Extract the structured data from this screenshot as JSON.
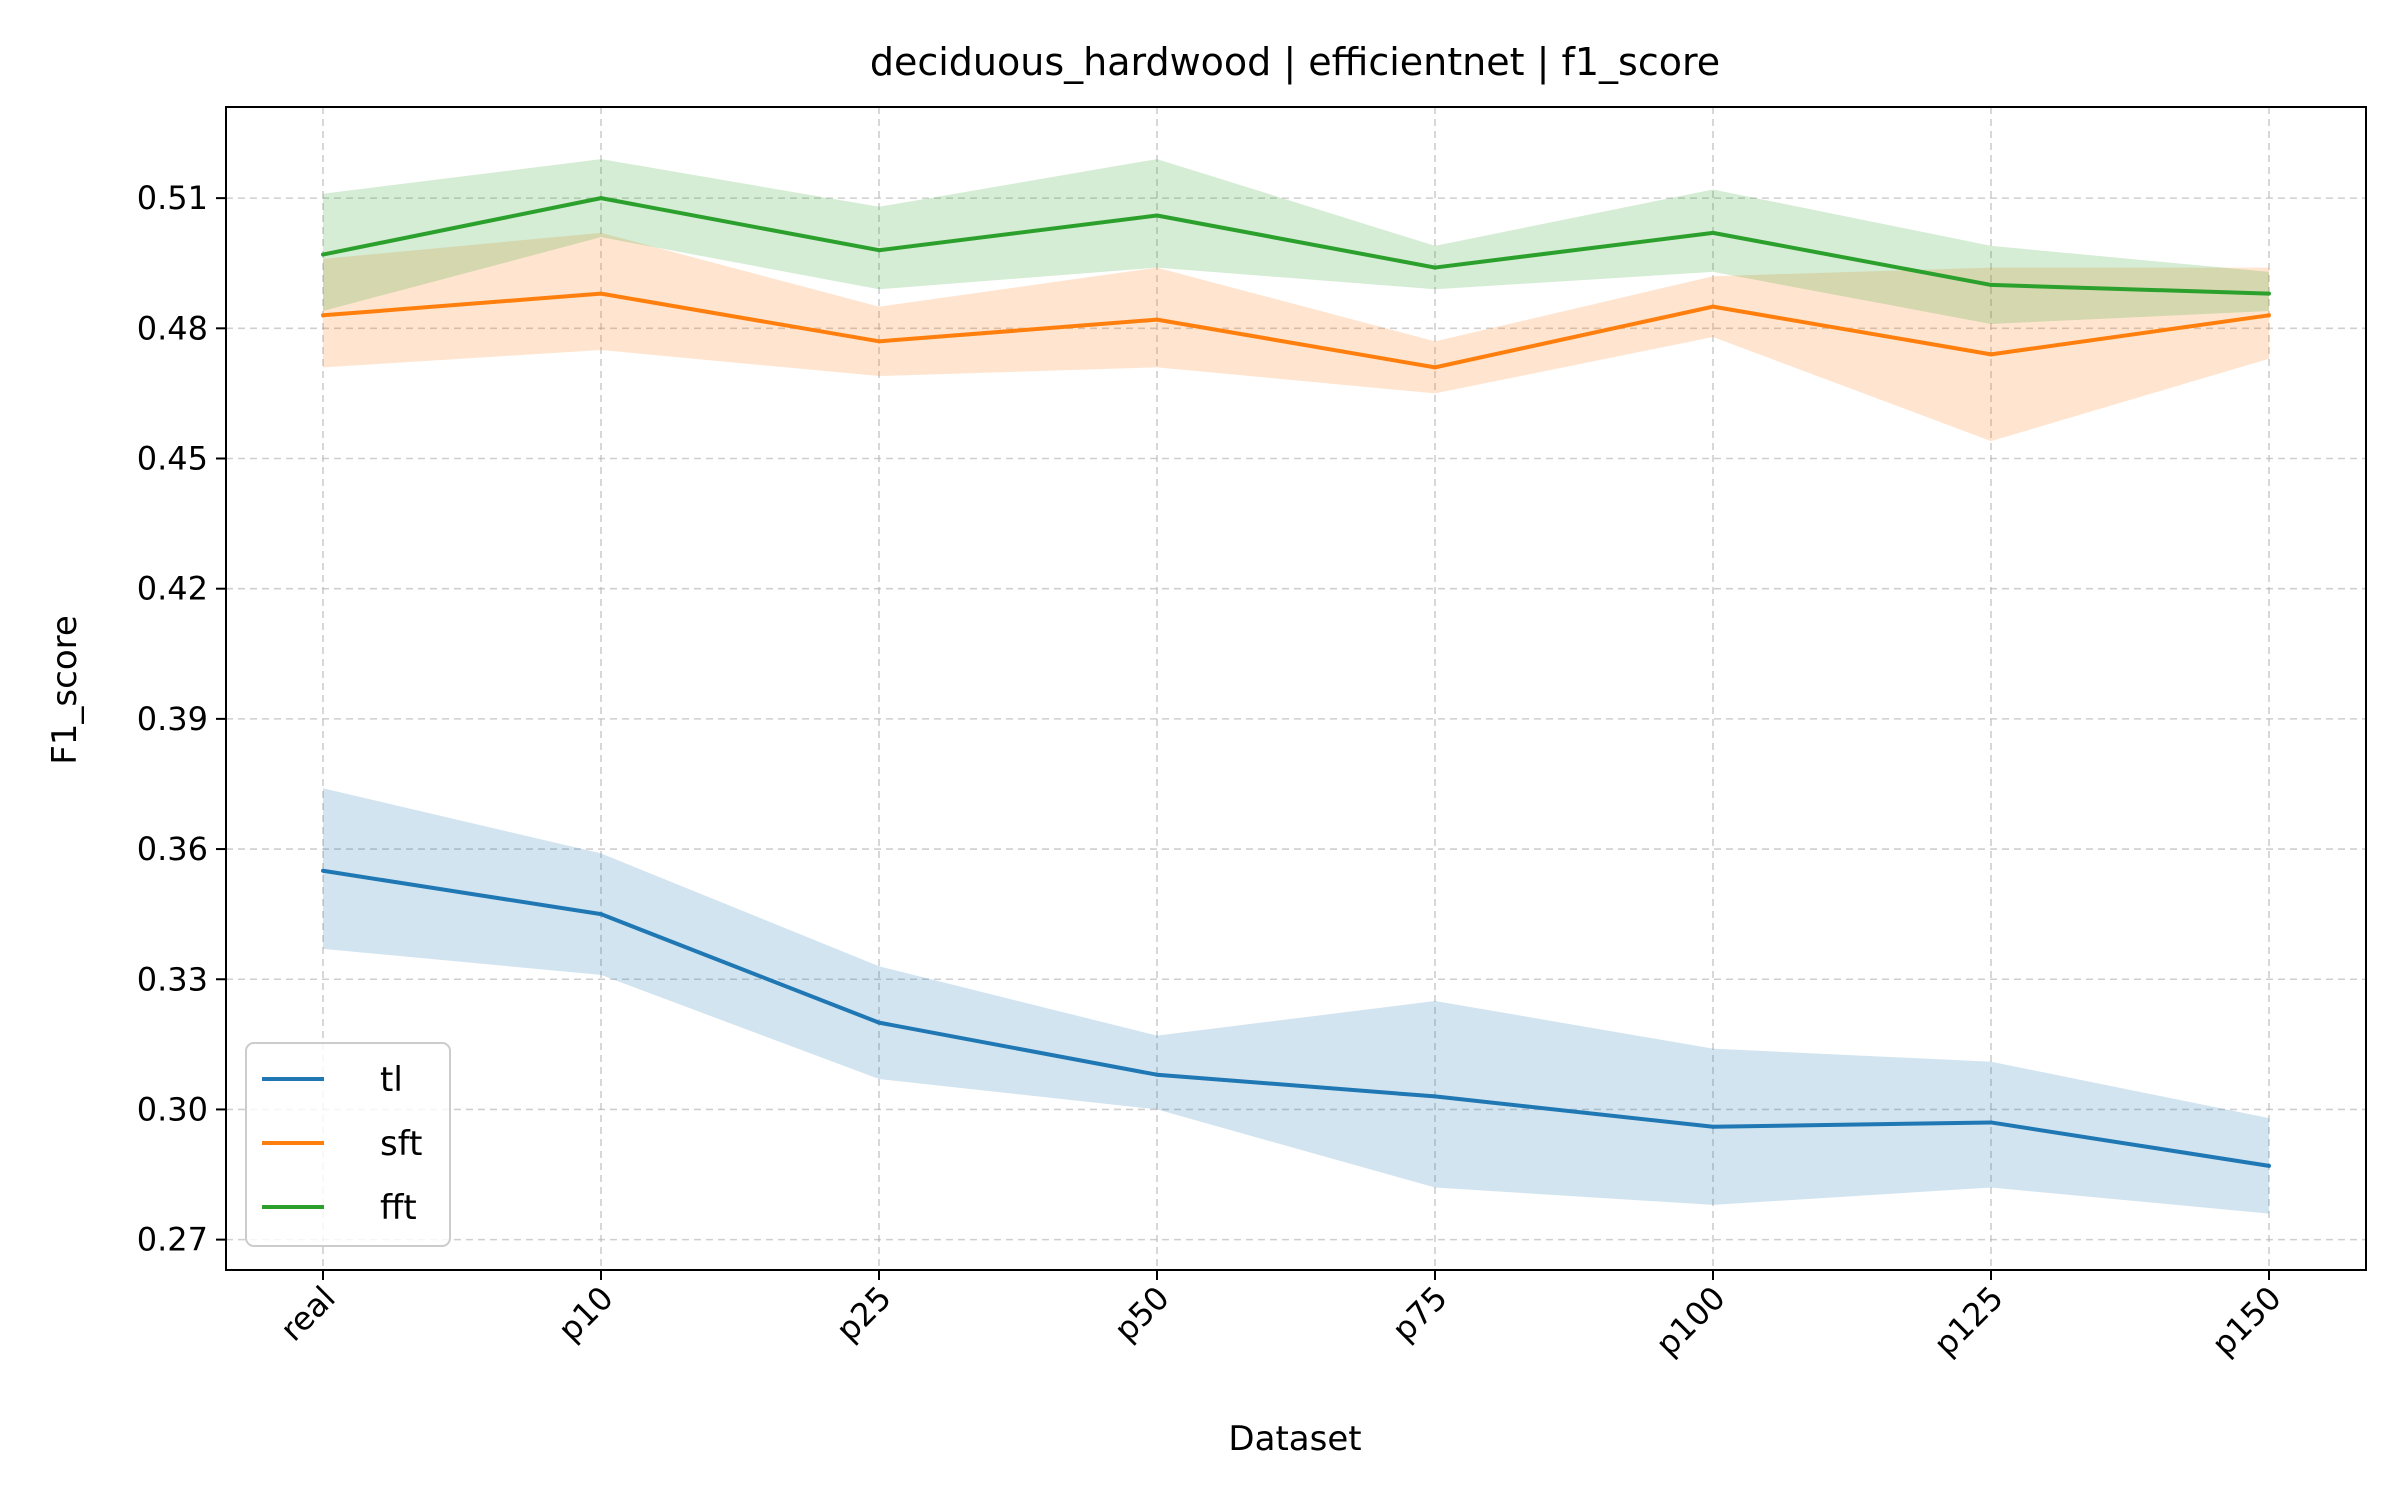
{
  "chart_data": {
    "type": "line",
    "title": "deciduous_hardwood | efficientnet | f1_score",
    "xlabel": "Dataset",
    "ylabel": "F1_score",
    "categories": [
      "real",
      "p10",
      "p25",
      "p50",
      "p75",
      "p100",
      "p125",
      "p150"
    ],
    "yticks": [
      0.27,
      0.3,
      0.33,
      0.36,
      0.39,
      0.42,
      0.45,
      0.48,
      0.51
    ],
    "ytick_labels": [
      "0.27",
      "0.30",
      "0.33",
      "0.36",
      "0.39",
      "0.42",
      "0.45",
      "0.48",
      "0.51"
    ],
    "ylim": [
      0.263,
      0.531
    ],
    "grid": true,
    "legend_position": "lower-left",
    "series": [
      {
        "name": "tl",
        "color": "#1f77b4",
        "values": [
          0.355,
          0.345,
          0.32,
          0.308,
          0.303,
          0.296,
          0.297,
          0.287
        ],
        "lower": [
          0.337,
          0.331,
          0.307,
          0.3,
          0.282,
          0.278,
          0.282,
          0.276
        ],
        "upper": [
          0.374,
          0.359,
          0.333,
          0.317,
          0.325,
          0.314,
          0.311,
          0.298
        ]
      },
      {
        "name": "sft",
        "color": "#ff7f0e",
        "values": [
          0.483,
          0.488,
          0.477,
          0.482,
          0.471,
          0.485,
          0.474,
          0.483
        ],
        "lower": [
          0.471,
          0.475,
          0.469,
          0.471,
          0.465,
          0.478,
          0.454,
          0.473
        ],
        "upper": [
          0.496,
          0.502,
          0.485,
          0.494,
          0.477,
          0.492,
          0.494,
          0.494
        ]
      },
      {
        "name": "fft",
        "color": "#2ca02c",
        "values": [
          0.497,
          0.51,
          0.498,
          0.506,
          0.494,
          0.502,
          0.49,
          0.488
        ],
        "lower": [
          0.484,
          0.501,
          0.489,
          0.494,
          0.489,
          0.493,
          0.481,
          0.484
        ],
        "upper": [
          0.511,
          0.519,
          0.508,
          0.519,
          0.499,
          0.512,
          0.499,
          0.493
        ]
      }
    ]
  }
}
